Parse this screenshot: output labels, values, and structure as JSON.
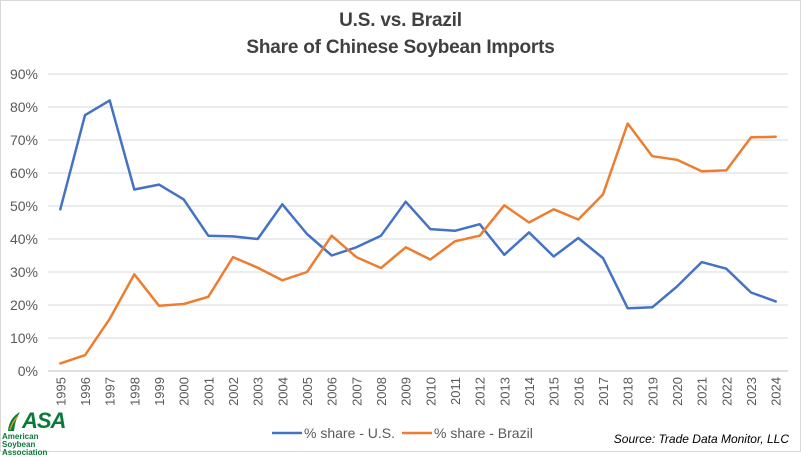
{
  "chart_data": {
    "type": "line",
    "title": "U.S. vs. Brazil",
    "subtitle": "Share of Chinese Soybean Imports",
    "xlabel": "",
    "ylabel": "",
    "ylim": [
      0,
      90
    ],
    "y_ticks": [
      "0%",
      "10%",
      "20%",
      "30%",
      "40%",
      "50%",
      "60%",
      "70%",
      "80%",
      "90%"
    ],
    "grid": true,
    "legend_position": "bottom",
    "categories": [
      "1995",
      "1996",
      "1997",
      "1998",
      "1999",
      "2000",
      "2001",
      "2002",
      "2003",
      "2004",
      "2005",
      "2006",
      "2007",
      "2008",
      "2009",
      "2010",
      "2011",
      "2012",
      "2013",
      "2014",
      "2015",
      "2016",
      "2017",
      "2018",
      "2019",
      "2020",
      "2021",
      "2022",
      "2023",
      "2024"
    ],
    "series": [
      {
        "name": "% share - U.S.",
        "color": "#4472c4",
        "values": [
          49,
          77.5,
          82,
          55,
          56.5,
          52,
          41,
          40.8,
          40,
          50.5,
          41.5,
          35,
          37.5,
          41,
          51.3,
          43,
          42.5,
          44.5,
          35.2,
          42,
          34.7,
          40.3,
          34.2,
          19,
          19.3,
          25.6,
          33,
          31,
          23.8,
          21.1
        ]
      },
      {
        "name": "% share - Brazil",
        "color": "#ed7d31",
        "values": [
          2.3,
          4.8,
          15.8,
          29.3,
          19.8,
          20.3,
          22.5,
          34.5,
          31.3,
          27.5,
          30,
          41,
          34.5,
          31.2,
          37.5,
          33.8,
          39.3,
          41,
          50.2,
          45,
          49,
          45.9,
          53.5,
          75,
          65.1,
          64,
          60.5,
          60.8,
          70.8,
          71
        ]
      }
    ],
    "source": "Source: Trade Data Monitor, LLC"
  },
  "logo": {
    "mark_text": "ASA",
    "sub_text": "American Soybean Association",
    "color": "#0a7a3a"
  }
}
